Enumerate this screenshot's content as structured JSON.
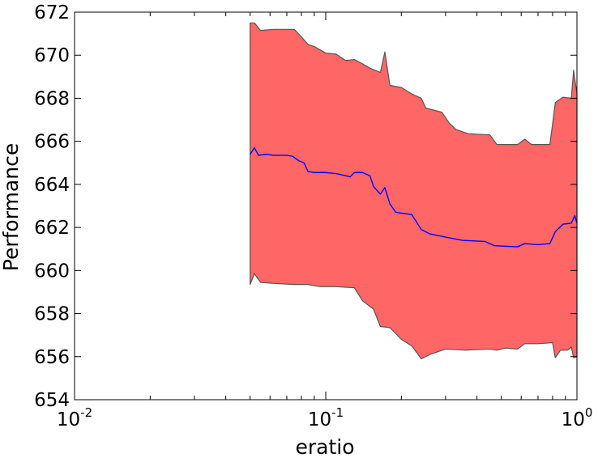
{
  "chart_data": {
    "type": "area",
    "xscale": "log",
    "xlabel": "eratio",
    "ylabel": "Performance",
    "xlim": [
      0.01,
      1
    ],
    "ylim": [
      654,
      672
    ],
    "x_ticks": [
      {
        "base": "10",
        "exp": "-2"
      },
      {
        "base": "10",
        "exp": "-1"
      },
      {
        "base": "10",
        "exp": "0"
      }
    ],
    "y_ticks": [
      "654",
      "656",
      "658",
      "660",
      "662",
      "664",
      "666",
      "668",
      "670",
      "672"
    ],
    "grid": false,
    "colors": {
      "band_fill": "#ff6666",
      "band_edge": "#555555",
      "mean_line": "#0000ff"
    },
    "series": [
      {
        "role": "mean",
        "points": [
          [
            0.05,
            665.4
          ],
          [
            0.052,
            665.7
          ],
          [
            0.054,
            665.35
          ],
          [
            0.058,
            665.4
          ],
          [
            0.062,
            665.35
          ],
          [
            0.066,
            665.35
          ],
          [
            0.07,
            665.35
          ],
          [
            0.074,
            665.3
          ],
          [
            0.078,
            665.1
          ],
          [
            0.082,
            665.0
          ],
          [
            0.085,
            664.6
          ],
          [
            0.09,
            664.55
          ],
          [
            0.1,
            664.55
          ],
          [
            0.11,
            664.5
          ],
          [
            0.12,
            664.4
          ],
          [
            0.125,
            664.35
          ],
          [
            0.13,
            664.55
          ],
          [
            0.14,
            664.55
          ],
          [
            0.15,
            664.4
          ],
          [
            0.155,
            663.9
          ],
          [
            0.165,
            663.55
          ],
          [
            0.172,
            663.85
          ],
          [
            0.18,
            663.1
          ],
          [
            0.19,
            662.7
          ],
          [
            0.22,
            662.6
          ],
          [
            0.24,
            661.9
          ],
          [
            0.26,
            661.7
          ],
          [
            0.3,
            661.55
          ],
          [
            0.35,
            661.4
          ],
          [
            0.43,
            661.35
          ],
          [
            0.47,
            661.15
          ],
          [
            0.58,
            661.1
          ],
          [
            0.62,
            661.25
          ],
          [
            0.7,
            661.2
          ],
          [
            0.78,
            661.25
          ],
          [
            0.82,
            661.8
          ],
          [
            0.88,
            662.15
          ],
          [
            0.95,
            662.2
          ],
          [
            0.98,
            662.55
          ],
          [
            1.0,
            662.2
          ]
        ]
      },
      {
        "role": "upper",
        "points": [
          [
            0.05,
            671.5
          ],
          [
            0.052,
            671.5
          ],
          [
            0.055,
            671.15
          ],
          [
            0.062,
            671.2
          ],
          [
            0.075,
            671.2
          ],
          [
            0.08,
            670.85
          ],
          [
            0.085,
            670.5
          ],
          [
            0.09,
            670.4
          ],
          [
            0.1,
            670.1
          ],
          [
            0.11,
            670.05
          ],
          [
            0.12,
            669.75
          ],
          [
            0.13,
            669.8
          ],
          [
            0.14,
            669.6
          ],
          [
            0.15,
            669.4
          ],
          [
            0.165,
            669.2
          ],
          [
            0.172,
            670.15
          ],
          [
            0.18,
            668.6
          ],
          [
            0.2,
            668.5
          ],
          [
            0.22,
            668.2
          ],
          [
            0.24,
            668.0
          ],
          [
            0.25,
            667.55
          ],
          [
            0.29,
            667.35
          ],
          [
            0.31,
            666.85
          ],
          [
            0.33,
            666.55
          ],
          [
            0.37,
            666.35
          ],
          [
            0.45,
            666.3
          ],
          [
            0.48,
            665.85
          ],
          [
            0.58,
            665.85
          ],
          [
            0.62,
            666.1
          ],
          [
            0.66,
            665.85
          ],
          [
            0.78,
            665.85
          ],
          [
            0.8,
            666.8
          ],
          [
            0.82,
            667.8
          ],
          [
            0.88,
            668.05
          ],
          [
            0.95,
            668.0
          ],
          [
            0.97,
            669.3
          ],
          [
            1.0,
            668.2
          ]
        ]
      },
      {
        "role": "lower",
        "points": [
          [
            0.05,
            659.35
          ],
          [
            0.052,
            659.85
          ],
          [
            0.055,
            659.45
          ],
          [
            0.062,
            659.4
          ],
          [
            0.075,
            659.35
          ],
          [
            0.085,
            659.35
          ],
          [
            0.095,
            659.25
          ],
          [
            0.11,
            659.25
          ],
          [
            0.13,
            659.2
          ],
          [
            0.14,
            658.6
          ],
          [
            0.155,
            658.2
          ],
          [
            0.165,
            657.4
          ],
          [
            0.18,
            657.35
          ],
          [
            0.2,
            656.8
          ],
          [
            0.22,
            656.5
          ],
          [
            0.24,
            655.9
          ],
          [
            0.26,
            656.1
          ],
          [
            0.3,
            656.35
          ],
          [
            0.36,
            656.3
          ],
          [
            0.45,
            656.35
          ],
          [
            0.48,
            656.3
          ],
          [
            0.52,
            656.4
          ],
          [
            0.58,
            656.35
          ],
          [
            0.62,
            656.6
          ],
          [
            0.7,
            656.6
          ],
          [
            0.8,
            656.65
          ],
          [
            0.82,
            655.95
          ],
          [
            0.86,
            656.3
          ],
          [
            0.92,
            656.3
          ],
          [
            0.95,
            656.45
          ],
          [
            0.97,
            655.95
          ],
          [
            1.0,
            656.0
          ]
        ]
      }
    ]
  }
}
